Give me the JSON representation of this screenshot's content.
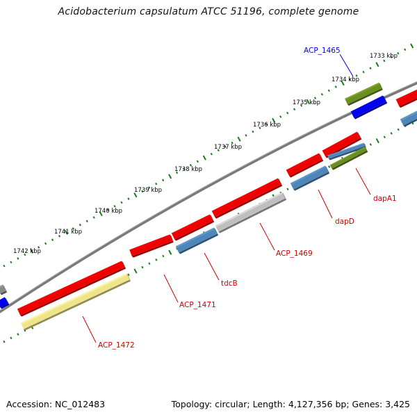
{
  "title": "Acidobacterium capsulatum ATCC 51196, complete genome",
  "accession_text": "Accession: NC_012483",
  "topology_text": "Topology: circular; Length: 4,127,356 bp; Genes: 3,425",
  "kbp_ticks": [
    "1733 kbp",
    "1734 kbp",
    "1735 kbp",
    "1736 kbp",
    "1737 kbp",
    "1738 kbp",
    "1739 kbp",
    "1740 kbp",
    "1741 kbp",
    "1742 kbp"
  ],
  "gene_labels": [
    {
      "text": "ACP_1465",
      "color": "#0000ee"
    },
    {
      "text": "dapA1",
      "color": "#cc0000"
    },
    {
      "text": "dapD",
      "color": "#cc0000"
    },
    {
      "text": "ACP_1469",
      "color": "#cc0000"
    },
    {
      "text": "tdcB",
      "color": "#cc0000"
    },
    {
      "text": "ACP_1471",
      "color": "#cc0000"
    },
    {
      "text": "ACP_1472",
      "color": "#cc0000"
    }
  ],
  "colors": {
    "cds_red": "#ee0000",
    "steel_blue": "#4f86b8",
    "blue": "#0000ee",
    "olive": "#6b8e23",
    "khaki": "#eee58a",
    "gray": "#bfbfbf",
    "backbone": "#777777",
    "tick_green": "#1a7a1a"
  }
}
